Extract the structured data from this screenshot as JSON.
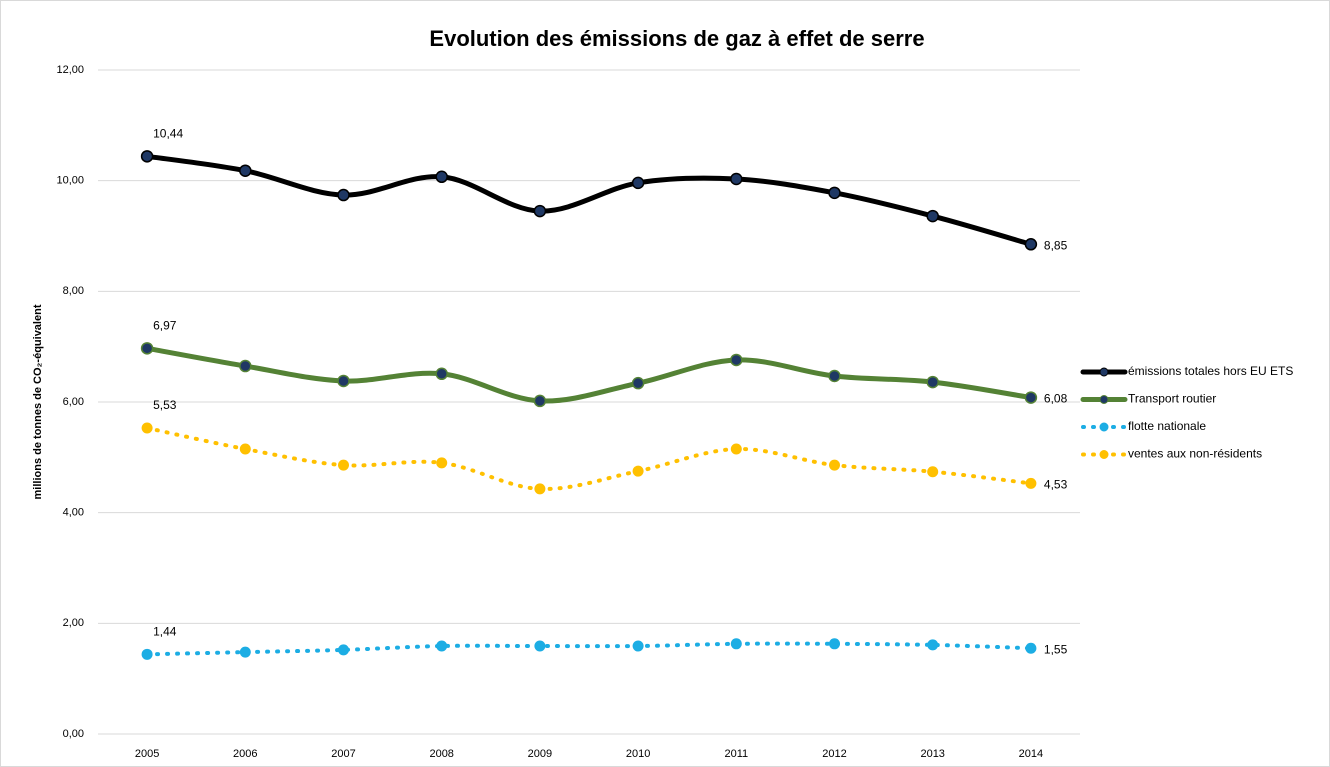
{
  "chart_data": {
    "type": "line",
    "title": "Evolution des émissions de gaz à effet de serre",
    "y_label": "millions de tonnes de CO₂-équivalent",
    "categories": [
      "2005",
      "2006",
      "2007",
      "2008",
      "2009",
      "2010",
      "2011",
      "2012",
      "2013",
      "2014"
    ],
    "ylim": [
      0,
      12
    ],
    "yticks": [
      {
        "value": 0,
        "label": "0,00"
      },
      {
        "value": 2,
        "label": "2,00"
      },
      {
        "value": 4,
        "label": "4,00"
      },
      {
        "value": 6,
        "label": "6,00"
      },
      {
        "value": 8,
        "label": "8,00"
      },
      {
        "value": 10,
        "label": "10,00"
      },
      {
        "value": 12,
        "label": "12,00"
      }
    ],
    "grid": true,
    "legend": "right",
    "series": [
      {
        "name": "émissions totales hors EU ETS",
        "color": "#000000",
        "style": "solid",
        "values": [
          10.44,
          10.18,
          9.74,
          10.07,
          9.45,
          9.96,
          10.03,
          9.78,
          9.36,
          8.85
        ],
        "value_labels": [
          "10,44",
          null,
          null,
          null,
          null,
          null,
          null,
          null,
          null,
          "8,85"
        ]
      },
      {
        "name": "Transport routier",
        "color": "#548235",
        "style": "solid",
        "values": [
          6.97,
          6.65,
          6.38,
          6.51,
          6.02,
          6.34,
          6.76,
          6.47,
          6.36,
          6.08
        ],
        "value_labels": [
          "6,97",
          null,
          null,
          null,
          null,
          null,
          null,
          null,
          null,
          "6,08"
        ]
      },
      {
        "name": "flotte nationale",
        "color": "#1cade4",
        "style": "dotted",
        "values": [
          1.44,
          1.48,
          1.52,
          1.59,
          1.59,
          1.59,
          1.63,
          1.63,
          1.61,
          1.55
        ],
        "value_labels": [
          "1,44",
          null,
          null,
          null,
          null,
          null,
          null,
          null,
          null,
          "1,55"
        ]
      },
      {
        "name": "ventes aux non-résidents",
        "color": "#ffc000",
        "style": "dotted",
        "values": [
          5.53,
          5.15,
          4.86,
          4.9,
          4.43,
          4.75,
          5.15,
          4.86,
          4.74,
          4.53
        ],
        "value_labels": [
          "5,53",
          null,
          null,
          null,
          null,
          null,
          null,
          null,
          null,
          "4,53"
        ]
      }
    ]
  }
}
